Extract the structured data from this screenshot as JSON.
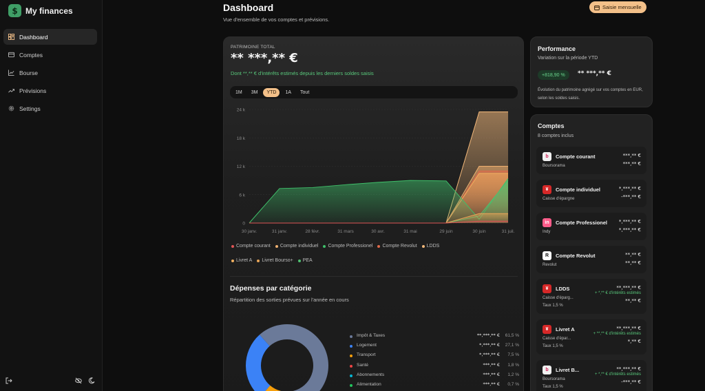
{
  "app": {
    "name": "My finances",
    "logo_glyph": "$"
  },
  "sidebar": {
    "items": [
      {
        "label": "Dashboard",
        "icon": "dashboard-icon",
        "active": true
      },
      {
        "label": "Comptes",
        "icon": "wallet-icon"
      },
      {
        "label": "Bourse",
        "icon": "line-chart-icon"
      },
      {
        "label": "Prévisions",
        "icon": "trend-icon"
      },
      {
        "label": "Settings",
        "icon": "gear-icon"
      }
    ],
    "bottom_icons": [
      "logout-icon",
      "eye-off-icon",
      "moon-icon"
    ]
  },
  "header": {
    "title": "Dashboard",
    "subtitle": "Vue d'ensemble de vos comptes et prévisions.",
    "action_label": "Saisie mensuelle"
  },
  "patrimoine": {
    "label": "PATRIMOINE TOTAL",
    "value": "** ***,** €",
    "note": "Dont **,** € d'intérêts estimés depuis les derniers soldes saisis",
    "ranges": [
      "1M",
      "3M",
      "YTD",
      "1A",
      "Tout"
    ],
    "active_range": "YTD"
  },
  "chart_data": {
    "type": "area",
    "ylim": [
      0,
      24000
    ],
    "y_ticks": [
      "0",
      "6 k",
      "12 k",
      "18 k",
      "24 k"
    ],
    "x_ticks": [
      "30 janv.",
      "31 janv.",
      "28 févr.",
      "31 mars",
      "30 avr.",
      "31 mai",
      "29 juin",
      "30 juin",
      "31 juil."
    ],
    "series": [
      {
        "name": "Compte courant",
        "color": "#e05555",
        "values": [
          0,
          0,
          0,
          0,
          0,
          0,
          0,
          400,
          400
        ]
      },
      {
        "name": "Compte individuel",
        "color": "#f0b070",
        "values": [
          0,
          0,
          0,
          0,
          0,
          0,
          0,
          12000,
          12000
        ]
      },
      {
        "name": "Compte Professionel",
        "color": "#3fbf6a",
        "values": [
          0,
          7300,
          7500,
          8100,
          8600,
          9000,
          8900,
          800,
          9400
        ]
      },
      {
        "name": "Compte Revolut",
        "color": "#e06a4a",
        "values": [
          0,
          0,
          0,
          0,
          0,
          0,
          0,
          11000,
          11000
        ]
      },
      {
        "name": "LDDS",
        "color": "#f3b87a",
        "values": [
          0,
          0,
          0,
          0,
          0,
          0,
          0,
          23500,
          23500
        ]
      },
      {
        "name": "Livret A",
        "color": "#f0b060",
        "values": [
          0,
          0,
          0,
          0,
          0,
          0,
          0,
          10500,
          10500
        ]
      },
      {
        "name": "Livret Bourso+",
        "color": "#e8a558",
        "values": [
          0,
          0,
          0,
          0,
          0,
          0,
          0,
          2000,
          2000
        ]
      },
      {
        "name": "PEA",
        "color": "#4fc070",
        "values": [
          0,
          0,
          0,
          0,
          0,
          0,
          0,
          1500,
          9000
        ]
      }
    ]
  },
  "depenses": {
    "title": "Dépenses par catégorie",
    "subtitle": "Répartition des sorties prévues sur l'année en cours",
    "categories": [
      {
        "name": "Impôt & Taxes",
        "amount": "**,***,** €",
        "pct": "61,5 %",
        "value": 61.5,
        "color": "#6b7a99"
      },
      {
        "name": "Logement",
        "amount": "*,***,** €",
        "pct": "27,1 %",
        "value": 27.1,
        "color": "#3b82f6"
      },
      {
        "name": "Transport",
        "amount": "*,***,** €",
        "pct": "7,5 %",
        "value": 7.5,
        "color": "#f59e0b"
      },
      {
        "name": "Santé",
        "amount": "***,** €",
        "pct": "1,8 %",
        "value": 1.8,
        "color": "#ef4444"
      },
      {
        "name": "Abonnements",
        "amount": "***,** €",
        "pct": "1,2 %",
        "value": 1.2,
        "color": "#06b6d4"
      },
      {
        "name": "Alimentation",
        "amount": "***,** €",
        "pct": "0,7 %",
        "value": 0.7,
        "color": "#22c55e"
      }
    ]
  },
  "performance": {
    "title": "Performance",
    "subtitle": "Variation sur la période YTD",
    "badge": "+818,90 %",
    "value": "** ***,** €",
    "description": "Évolution du patrimoine agrégé sur vos comptes en EUR, selon les soldes saisis."
  },
  "comptes": {
    "title": "Comptes",
    "subtitle": "8 comptes inclus",
    "items": [
      {
        "name": "Compte courant",
        "bank": "Boursorama",
        "v1": "***,** €",
        "v2": "***,** €",
        "icon": "boursorama-icon",
        "icon_bg": "#f0f0f0",
        "icon_fg": "#d2235a",
        "icon_text": "b"
      },
      {
        "name": "Compte individuel",
        "bank": "Caisse d'épargne",
        "v1": "*,***,** €",
        "v2": "-***,** €",
        "icon": "caisse-epargne-icon",
        "icon_bg": "#d62828",
        "icon_fg": "#ffffff",
        "icon_text": "¥"
      },
      {
        "name": "Compte Professionel",
        "bank": "Indy",
        "v1": "*,***,** €",
        "v2": "*,***,** €",
        "icon": "indy-icon",
        "icon_bg": "#ff5c8a",
        "icon_fg": "#ffffff",
        "icon_text": "in"
      },
      {
        "name": "Compte Revolut",
        "bank": "Revolut",
        "v1": "**,** €",
        "v2": "**,** €",
        "icon": "revolut-icon",
        "icon_bg": "#ffffff",
        "icon_fg": "#111111",
        "icon_text": "R"
      },
      {
        "name": "LDDS",
        "bank": "Caisse d'éparg...",
        "rate": "Taux 1,5 %",
        "v1": "**,***,** €",
        "interest": "+ *,** € d'intérêts estimés",
        "v2": "**,** €",
        "icon": "caisse-epargne-icon",
        "icon_bg": "#d62828",
        "icon_fg": "#ffffff",
        "icon_text": "¥"
      },
      {
        "name": "Livret A",
        "bank": "Caisse d'épar...",
        "rate": "Taux 1,5 %",
        "v1": "**,***,** €",
        "interest": "+ **,** € d'intérêts estimés",
        "v2": "*,** €",
        "icon": "caisse-epargne-icon",
        "icon_bg": "#d62828",
        "icon_fg": "#ffffff",
        "icon_text": "¥"
      },
      {
        "name": "Livret B...",
        "bank": "Boursorama",
        "rate": "Taux 1,5 %",
        "v1": "**,***,** €",
        "interest": "+ *,** € d'intérêts estimés",
        "v2": "-***,** €",
        "icon": "boursorama-icon",
        "icon_bg": "#f0f0f0",
        "icon_fg": "#d2235a",
        "icon_text": "b"
      }
    ]
  }
}
